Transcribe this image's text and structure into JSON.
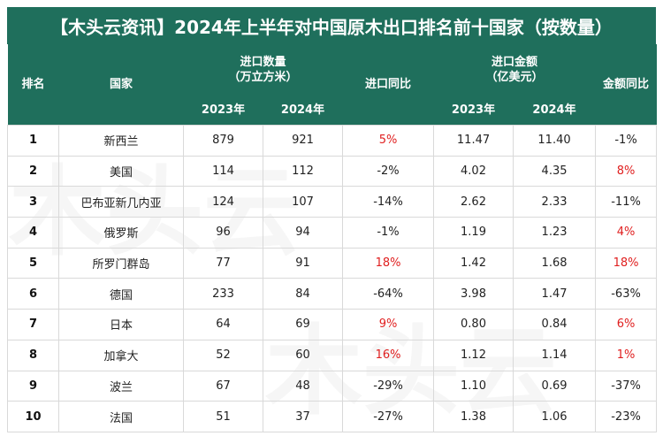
{
  "title": "【木头云资讯】2024年上半年对中国原木出口排名前十国家（按数量）",
  "headers": {
    "rank": "排名",
    "country": "国家",
    "import_volume": "进口数量\n（万立方米）",
    "volume_yoy": "进口同比",
    "import_value": "进口金额\n（亿美元）",
    "value_yoy": "金额同比",
    "year_2023": "2023年",
    "year_2024": "2024年"
  },
  "rows": [
    {
      "rank": "1",
      "country": "新西兰",
      "vol2023": "879",
      "vol2024": "921",
      "vol_yoy": "5%",
      "val2023": "11.47",
      "val2024": "11.40",
      "val_yoy": "-1%"
    },
    {
      "rank": "2",
      "country": "美国",
      "vol2023": "114",
      "vol2024": "112",
      "vol_yoy": "-2%",
      "val2023": "4.02",
      "val2024": "4.35",
      "val_yoy": "8%"
    },
    {
      "rank": "3",
      "country": "巴布亚新几内亚",
      "vol2023": "124",
      "vol2024": "107",
      "vol_yoy": "-14%",
      "val2023": "2.62",
      "val2024": "2.33",
      "val_yoy": "-11%"
    },
    {
      "rank": "4",
      "country": "俄罗斯",
      "vol2023": "96",
      "vol2024": "94",
      "vol_yoy": "-1%",
      "val2023": "1.19",
      "val2024": "1.23",
      "val_yoy": "4%"
    },
    {
      "rank": "5",
      "country": "所罗门群岛",
      "vol2023": "77",
      "vol2024": "91",
      "vol_yoy": "18%",
      "val2023": "1.42",
      "val2024": "1.68",
      "val_yoy": "18%"
    },
    {
      "rank": "6",
      "country": "德国",
      "vol2023": "233",
      "vol2024": "84",
      "vol_yoy": "-64%",
      "val2023": "3.98",
      "val2024": "1.47",
      "val_yoy": "-63%"
    },
    {
      "rank": "7",
      "country": "日本",
      "vol2023": "64",
      "vol2024": "69",
      "vol_yoy": "9%",
      "val2023": "0.80",
      "val2024": "0.84",
      "val_yoy": "6%"
    },
    {
      "rank": "8",
      "country": "加拿大",
      "vol2023": "52",
      "vol2024": "60",
      "vol_yoy": "16%",
      "val2023": "1.12",
      "val2024": "1.14",
      "val_yoy": "1%"
    },
    {
      "rank": "9",
      "country": "波兰",
      "vol2023": "67",
      "vol2024": "48",
      "vol_yoy": "-29%",
      "val2023": "1.10",
      "val2024": "0.69",
      "val_yoy": "-37%"
    },
    {
      "rank": "10",
      "country": "法国",
      "vol2023": "51",
      "vol2024": "37",
      "vol_yoy": "-27%",
      "val2023": "1.38",
      "val2024": "1.06",
      "val_yoy": "-23%"
    }
  ],
  "watermark": "木头云",
  "colors": {
    "header_bg": "#1f6f5c",
    "positive": "#e02020",
    "text": "#222222"
  }
}
